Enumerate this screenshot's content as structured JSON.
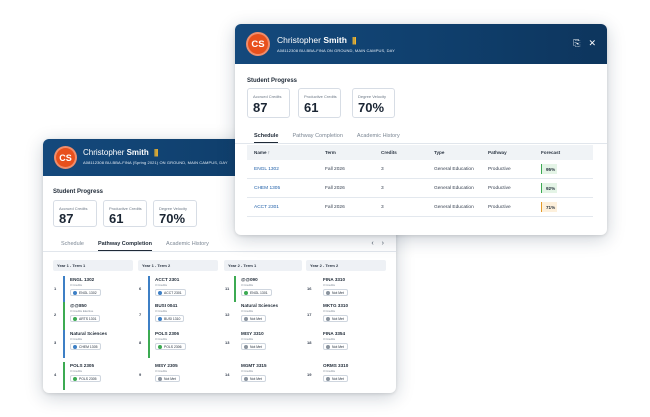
{
  "colors": {
    "header": "#14497c",
    "avatar": "#e8501c",
    "accent_green": "#3caa52",
    "accent_blue": "#3d7fc5",
    "accent_amber": "#e49a28"
  },
  "back": {
    "initials": "CS",
    "first_name": "Christopher",
    "last_name": "Smith",
    "badge": "|||",
    "subtitle": "A08112308   BU-BBA-FINA (Spring 2021)   ON GROUND, MAIN CAMPUS, DAY",
    "section_title": "Student Progress",
    "stats": [
      {
        "label": "Accrued Credits",
        "value": "87"
      },
      {
        "label": "Productive Credits",
        "value": "61"
      },
      {
        "label": "Degree Velocity",
        "value": "70%"
      }
    ],
    "tabs": [
      "Schedule",
      "Pathway Completion",
      "Academic History"
    ],
    "active_tab": "Pathway Completion",
    "pager": {
      "prev": "‹",
      "next": "›"
    },
    "columns": [
      {
        "title": "Year 1 - Term 1",
        "courses": [
          {
            "num": "1",
            "name": "ENGL 1302",
            "credits": "3 Credits",
            "chip": "ENGL 1302",
            "status": "blue"
          },
          {
            "num": "2",
            "name": "@@850",
            "credits": "3 Credits   Elective",
            "chip": "ARTS 1301",
            "status": "green"
          },
          {
            "num": "3",
            "name": "Natural Sciences",
            "credits": "3 Credits",
            "chip": "CHEM 1305",
            "status": "blue"
          },
          {
            "num": "4",
            "name": "POLS 2305",
            "credits": "3 Credits",
            "chip": "POLS 2305",
            "status": "green"
          }
        ]
      },
      {
        "title": "Year 1 - Term 2",
        "courses": [
          {
            "num": "6",
            "name": "ACCT 2301",
            "credits": "3 Credits",
            "chip": "ACCT 2301",
            "status": "blue"
          },
          {
            "num": "7",
            "name": "BUSI 0041",
            "credits": "3 Credits",
            "chip": "BUSI 1310",
            "status": "blue"
          },
          {
            "num": "8",
            "name": "POLS 2306",
            "credits": "3 Credits",
            "chip": "POLS 2306",
            "status": "green"
          },
          {
            "num": "9",
            "name": "MISY 2305",
            "credits": "3 Credits",
            "chip": "Not Met",
            "status": "gray"
          }
        ]
      },
      {
        "title": "Year 2 - Term 1",
        "courses": [
          {
            "num": "11",
            "name": "@@090",
            "credits": "3 Credits",
            "chip": "ENGL 1301",
            "status": "green"
          },
          {
            "num": "12",
            "name": "Natural Sciences",
            "credits": "3 Credits",
            "chip": "Not Met",
            "status": "gray"
          },
          {
            "num": "13",
            "name": "MISY 3310",
            "credits": "3 Credits",
            "chip": "Not Met",
            "status": "gray"
          },
          {
            "num": "14",
            "name": "MGMT 3315",
            "credits": "3 Credits",
            "chip": "Not Met",
            "status": "gray"
          }
        ]
      },
      {
        "title": "Year 2 - Term 2",
        "courses": [
          {
            "num": "16",
            "name": "FINA 3310",
            "credits": "3 Credits",
            "chip": "Not Met",
            "status": "gray"
          },
          {
            "num": "17",
            "name": "MKTG 3310",
            "credits": "3 Credits",
            "chip": "Not Met",
            "status": "gray"
          },
          {
            "num": "18",
            "name": "FINA 3354",
            "credits": "3 Credits",
            "chip": "Not Met",
            "status": "gray"
          },
          {
            "num": "19",
            "name": "ORMS 3310",
            "credits": "3 Credits",
            "chip": "Not Met",
            "status": "gray"
          }
        ]
      }
    ]
  },
  "front": {
    "initials": "CS",
    "first_name": "Christopher",
    "last_name": "Smith",
    "badge": "|||",
    "subtitle": "A08112308   BU-BBA-FINA   ON GROUND, MAIN CAMPUS, DAY",
    "download_icon": "⎘",
    "close_icon": "✕",
    "section_title": "Student Progress",
    "stats": [
      {
        "label": "Accrued Credits",
        "value": "87"
      },
      {
        "label": "Productive Credits",
        "value": "61"
      },
      {
        "label": "Degree Velocity",
        "value": "70%"
      }
    ],
    "tabs": [
      "Schedule",
      "Pathway Completion",
      "Academic History"
    ],
    "active_tab": "Schedule",
    "table": {
      "headers": [
        "Name ↑",
        "Term",
        "Credits",
        "Type",
        "Pathway",
        "Forecast"
      ],
      "rows": [
        {
          "name": "ENGL 1302",
          "term": "Fall 2026",
          "credits": "3",
          "type": "General Education",
          "pathway": "Productive",
          "forecast": "95%",
          "level": "good"
        },
        {
          "name": "CHEM 1305",
          "term": "Fall 2026",
          "credits": "3",
          "type": "General Education",
          "pathway": "Productive",
          "forecast": "92%",
          "level": "good"
        },
        {
          "name": "ACCT 2301",
          "term": "Fall 2026",
          "credits": "3",
          "type": "General Education",
          "pathway": "Productive",
          "forecast": "71%",
          "level": "warn"
        }
      ]
    }
  }
}
